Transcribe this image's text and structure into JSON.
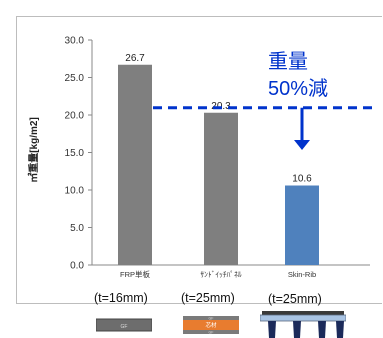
{
  "chart_data": {
    "type": "bar",
    "categories": [
      "FRP単板",
      "ｻﾝﾄﾞｲｯﾁﾊﾟﾈﾙ",
      "Skin-Rib"
    ],
    "values": [
      26.7,
      20.3,
      10.6
    ],
    "value_labels": [
      "26.7",
      "20.3",
      "10.6"
    ],
    "bar_colors": [
      "#7f7f7f",
      "#7f7f7f",
      "#4f81bd"
    ],
    "ylabel": "㎡重量[kg/m2]",
    "ylim": [
      0,
      30
    ],
    "yticks": [
      0,
      5,
      10,
      15,
      20,
      25,
      30
    ],
    "ytick_labels": [
      "0.0",
      "5.0",
      "10.0",
      "15.0",
      "20.0",
      "25.0",
      "30.0"
    ],
    "grid": false,
    "annotation": {
      "line1": "重量",
      "line2": "50%減",
      "color": "#0033cc",
      "reference_value": 20.3
    }
  },
  "thicknesses": [
    "(t=16mm)",
    "(t=25mm)",
    "(t=25mm)"
  ],
  "thumbnails": {
    "frp_label": "GF",
    "sandwich_top": "GF",
    "sandwich_core": "芯材",
    "sandwich_bottom": "GF",
    "frp_color": "#6d6d6d",
    "sandwich_color": "#e87c2f"
  }
}
